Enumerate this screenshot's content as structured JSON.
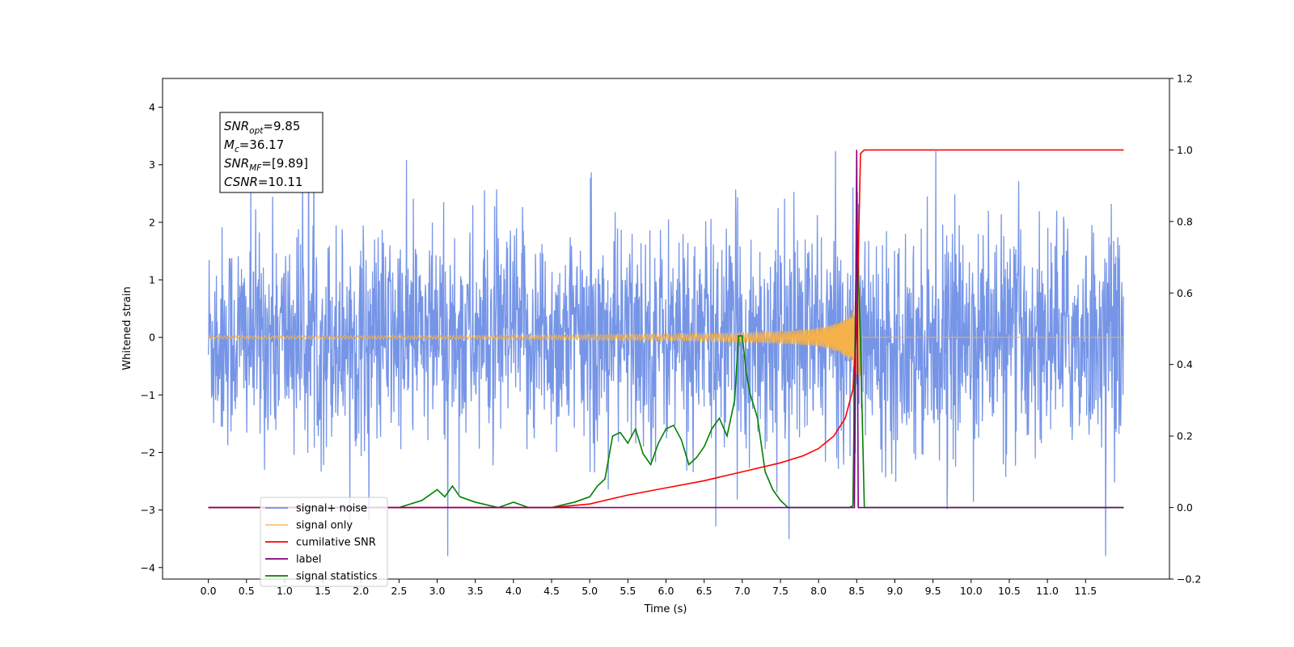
{
  "chart_data": {
    "type": "line",
    "xlabel": "Time (s)",
    "ylabel": "Whitened strain",
    "xlim": [
      -0.6,
      12.6
    ],
    "ylim": [
      -4.2,
      4.5
    ],
    "ylim_right": [
      -0.2,
      1.2
    ],
    "x_ticks": [
      "0.0",
      "0.5",
      "1.0",
      "1.5",
      "2.0",
      "2.5",
      "3.0",
      "3.5",
      "4.0",
      "4.5",
      "5.0",
      "5.5",
      "6.0",
      "6.5",
      "7.0",
      "7.5",
      "8.0",
      "8.5",
      "9.0",
      "9.5",
      "10.0",
      "10.5",
      "11.0",
      "11.5"
    ],
    "y_ticks_left": [
      "−4",
      "−3",
      "−2",
      "−1",
      "0",
      "1",
      "2",
      "3",
      "4"
    ],
    "y_ticks_right": [
      "−0.2",
      "0.0",
      "0.2",
      "0.4",
      "0.6",
      "0.8",
      "1.0",
      "1.2"
    ],
    "grid": false,
    "legend_position": "lower-left",
    "stats": [
      {
        "name": "SNR",
        "sub": "opt",
        "value": "=9.85"
      },
      {
        "name": "M",
        "sub": "c",
        "value": "=36.17"
      },
      {
        "name": "SNR",
        "sub": "MF",
        "value": "=[9.89]"
      },
      {
        "name": "CSNR",
        "sub": "",
        "value": "=10.11"
      }
    ],
    "series": [
      {
        "name": "signal+ noise",
        "color": "#6f8fe6",
        "axis": "left",
        "description_values": {
          "amplitude_range": [
            -3.8,
            4.1
          ],
          "duration": [
            0.0,
            12.0
          ]
        }
      },
      {
        "name": "signal only",
        "color": "#f5b14a",
        "axis": "left",
        "chirp_peak_time": 8.55,
        "peak_amplitude": 0.8
      },
      {
        "name": "cumilative SNR",
        "color": "#ff0000",
        "axis": "right",
        "x": [
          0.0,
          4.5,
          5.0,
          5.5,
          6.0,
          6.5,
          7.0,
          7.5,
          7.8,
          8.0,
          8.2,
          8.35,
          8.45,
          8.5,
          8.55,
          8.6,
          12.0
        ],
        "y": [
          0.0,
          0.0,
          0.01,
          0.035,
          0.055,
          0.075,
          0.1,
          0.125,
          0.145,
          0.165,
          0.2,
          0.25,
          0.33,
          0.5,
          0.99,
          1.0,
          1.0
        ]
      },
      {
        "name": "label",
        "color": "#800080",
        "axis": "right",
        "x": [
          0.0,
          8.47,
          8.5,
          8.52,
          8.55,
          12.0
        ],
        "y": [
          0.0,
          0.0,
          1.0,
          0.0,
          0.0,
          0.0
        ]
      },
      {
        "name": "signal statistics",
        "color": "#008000",
        "axis": "right",
        "x": [
          0.0,
          2.0,
          2.5,
          2.8,
          3.0,
          3.1,
          3.2,
          3.3,
          3.5,
          3.8,
          4.0,
          4.2,
          4.5,
          4.8,
          5.0,
          5.1,
          5.2,
          5.3,
          5.4,
          5.5,
          5.6,
          5.7,
          5.8,
          5.9,
          6.0,
          6.1,
          6.2,
          6.3,
          6.4,
          6.5,
          6.6,
          6.7,
          6.8,
          6.9,
          6.95,
          7.0,
          7.05,
          7.1,
          7.2,
          7.3,
          7.4,
          7.5,
          7.6,
          8.0,
          8.4,
          8.45,
          8.5,
          8.55,
          8.6,
          12.0
        ],
        "y": [
          0.0,
          0.0,
          0.0,
          0.02,
          0.05,
          0.03,
          0.06,
          0.03,
          0.015,
          0.0,
          0.015,
          0.0,
          0.0,
          0.015,
          0.03,
          0.06,
          0.08,
          0.2,
          0.21,
          0.18,
          0.22,
          0.15,
          0.12,
          0.18,
          0.22,
          0.23,
          0.19,
          0.12,
          0.14,
          0.17,
          0.22,
          0.25,
          0.2,
          0.3,
          0.48,
          0.48,
          0.38,
          0.32,
          0.25,
          0.1,
          0.05,
          0.02,
          0.0,
          0.0,
          0.0,
          0.005,
          0.82,
          0.46,
          0.0,
          0.0
        ]
      }
    ]
  }
}
